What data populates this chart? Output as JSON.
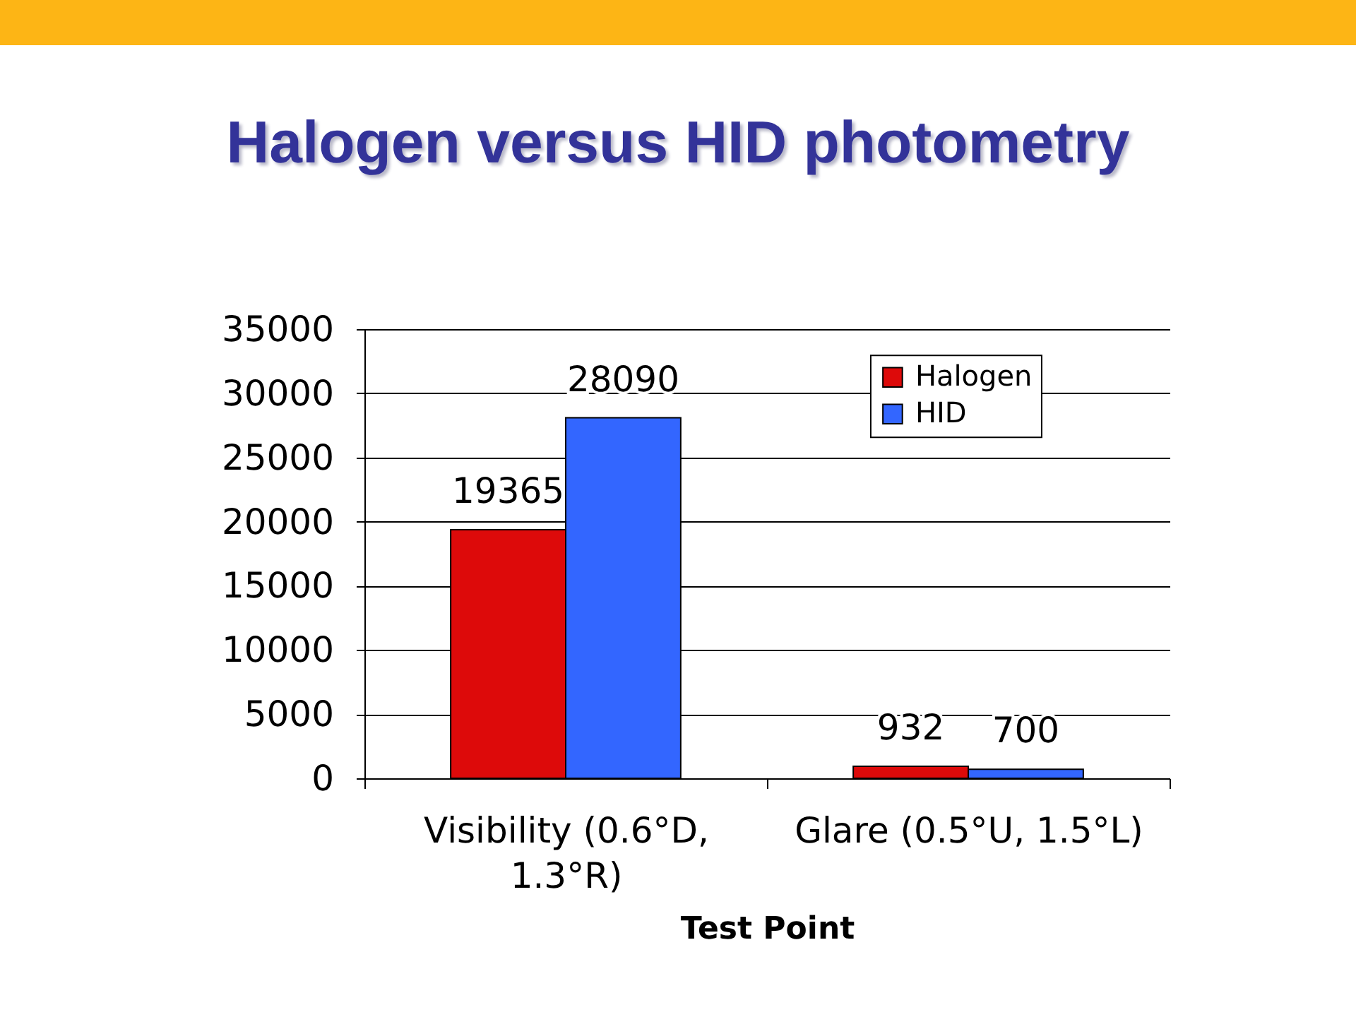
{
  "chart_data": {
    "type": "bar",
    "title": "Halogen versus HID photometry",
    "xlabel": "Test Point",
    "categories": [
      "Visibility (0.6°D, 1.3°R)",
      "Glare (0.5°U, 1.5°L)"
    ],
    "series": [
      {
        "name": "Halogen",
        "color": "#dd0a0a",
        "values": [
          19365,
          932
        ]
      },
      {
        "name": "HID",
        "color": "#3366ff",
        "values": [
          28090,
          700
        ]
      }
    ],
    "ylim": [
      0,
      35000
    ],
    "yticks": [
      0,
      5000,
      10000,
      15000,
      20000,
      25000,
      30000,
      35000
    ],
    "grid": "y",
    "legend": "top right",
    "data_labels": true
  }
}
